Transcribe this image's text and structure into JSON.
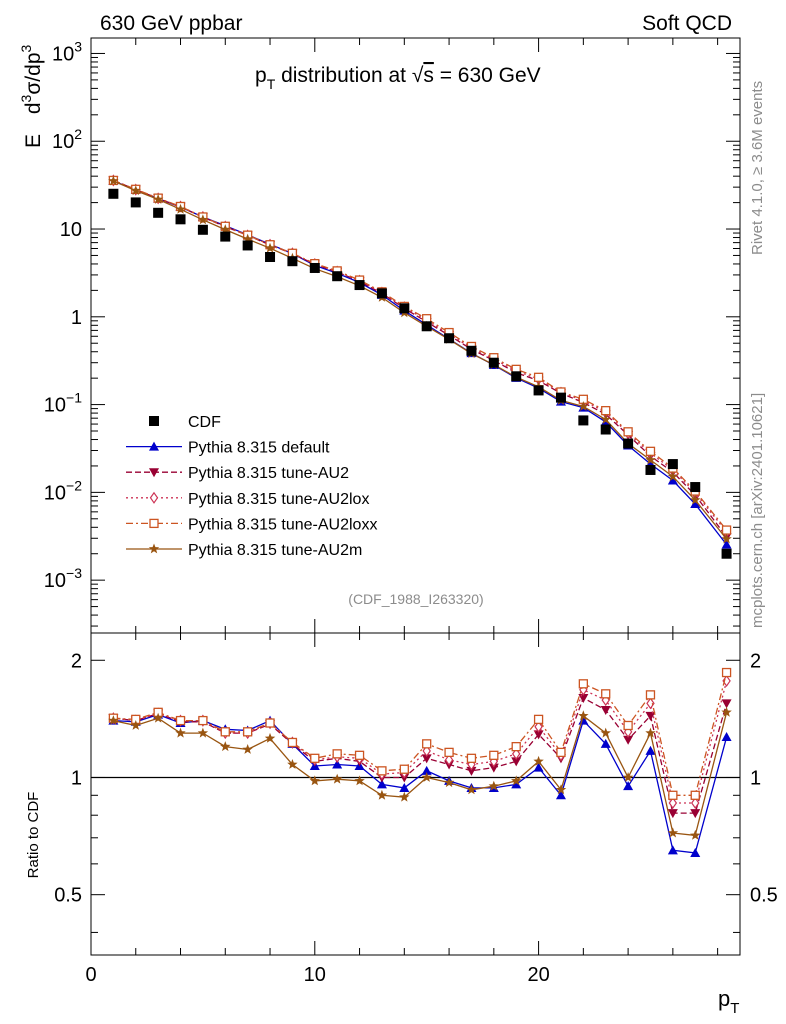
{
  "header": {
    "left": "630 GeV ppbar",
    "right": "Soft QCD"
  },
  "side": {
    "rivet": "Rivet 4.1.0, ≥ 3.6M events",
    "mcplots": "mcplots.cern.ch [arXiv:2401.10621]"
  },
  "chart_data": {
    "type": "line",
    "title": "pT distribution at √s = 630 GeV",
    "title_parts": {
      "p": "p",
      "sub": "T",
      "mid": " distribution at ",
      "root": "√",
      "s": "s",
      "tail": " = 630 GeV"
    },
    "analysis_id": "(CDF_1988_I263320)",
    "ylabel": {
      "e": "E",
      "d3": "d",
      "sup1": "3",
      "sig": "σ/dp",
      "sup2": "3"
    },
    "ratio_ylabel": "Ratio to CDF",
    "xlabel": {
      "p": "p",
      "sub": "T"
    },
    "xlim": [
      0,
      29
    ],
    "ylim": [
      0.00025,
      1500
    ],
    "ratio_ylim": [
      0.35,
      2.35
    ],
    "x_ticks": [
      0,
      10,
      20
    ],
    "x_tick_labels": [
      "0",
      "10",
      "20"
    ],
    "y_ticks": [
      {
        "v": 1000,
        "base": "10",
        "exp": "3"
      },
      {
        "v": 100,
        "base": "10",
        "exp": "2"
      },
      {
        "v": 10,
        "base": "10",
        "exp": ""
      },
      {
        "v": 1,
        "base": "1",
        "exp": ""
      },
      {
        "v": 0.1,
        "base": "10",
        "exp": "−1"
      },
      {
        "v": 0.01,
        "base": "10",
        "exp": "−2"
      },
      {
        "v": 0.001,
        "base": "10",
        "exp": "−3"
      }
    ],
    "ratio_ticks": [
      {
        "v": 2,
        "label": "2"
      },
      {
        "v": 1,
        "label": "1"
      },
      {
        "v": 0.5,
        "label": "0.5"
      }
    ],
    "x": [
      1,
      2,
      3,
      4,
      5,
      6,
      7,
      8,
      9,
      10,
      11,
      12,
      13,
      14,
      15,
      16,
      17,
      18,
      19,
      20,
      21,
      22,
      23,
      24,
      25,
      26,
      27,
      28.4
    ],
    "data": {
      "name": "CDF",
      "color": "#000000",
      "values": [
        25.2,
        20.1,
        15.3,
        12.9,
        9.8,
        8.2,
        6.5,
        4.8,
        4.3,
        3.6,
        2.9,
        2.3,
        1.85,
        1.25,
        0.78,
        0.57,
        0.41,
        0.3,
        0.21,
        0.145,
        0.12,
        0.066,
        0.052,
        0.036,
        0.018,
        0.021,
        0.0115,
        0.002
      ]
    },
    "series": [
      {
        "name": "Pythia 8.315 default",
        "color": "#0000cc",
        "marker": "triangle-up",
        "dash": "",
        "ratio": [
          1.4,
          1.39,
          1.45,
          1.38,
          1.4,
          1.33,
          1.32,
          1.4,
          1.22,
          1.07,
          1.08,
          1.07,
          0.96,
          0.94,
          1.04,
          0.98,
          0.94,
          0.94,
          0.96,
          1.06,
          0.9,
          1.4,
          1.22,
          0.95,
          1.17,
          0.65,
          0.64,
          1.27
        ]
      },
      {
        "name": "Pythia 8.315 tune-AU2",
        "color": "#990033",
        "marker": "triangle-down",
        "dash": "6,3",
        "ratio": [
          1.42,
          1.4,
          1.46,
          1.39,
          1.39,
          1.3,
          1.3,
          1.37,
          1.22,
          1.1,
          1.12,
          1.1,
          1.0,
          1.0,
          1.12,
          1.08,
          1.04,
          1.06,
          1.1,
          1.29,
          1.12,
          1.6,
          1.49,
          1.25,
          1.44,
          0.81,
          0.81,
          1.55
        ]
      },
      {
        "name": "Pythia 8.315 tune-AU2lox",
        "color": "#cc3355",
        "marker": "diamond",
        "dash": "2,3",
        "ratio": [
          1.42,
          1.4,
          1.46,
          1.4,
          1.4,
          1.3,
          1.3,
          1.38,
          1.23,
          1.11,
          1.13,
          1.12,
          1.02,
          1.03,
          1.17,
          1.11,
          1.08,
          1.1,
          1.15,
          1.35,
          1.14,
          1.68,
          1.58,
          1.31,
          1.55,
          0.86,
          0.86,
          1.77
        ]
      },
      {
        "name": "Pythia 8.315 tune-AU2loxx",
        "color": "#cc5522",
        "marker": "square-open",
        "dash": "7,3,2,3",
        "ratio": [
          1.42,
          1.41,
          1.47,
          1.4,
          1.4,
          1.31,
          1.31,
          1.38,
          1.23,
          1.12,
          1.15,
          1.14,
          1.04,
          1.05,
          1.22,
          1.16,
          1.12,
          1.14,
          1.2,
          1.41,
          1.16,
          1.74,
          1.64,
          1.36,
          1.63,
          0.9,
          0.9,
          1.86
        ]
      },
      {
        "name": "Pythia 8.315 tune-AU2m",
        "color": "#995511",
        "marker": "star",
        "dash": "",
        "ratio": [
          1.4,
          1.36,
          1.42,
          1.3,
          1.3,
          1.2,
          1.18,
          1.26,
          1.08,
          0.98,
          0.99,
          0.98,
          0.9,
          0.89,
          1.0,
          0.97,
          0.93,
          0.95,
          0.98,
          1.1,
          0.93,
          1.44,
          1.3,
          1.0,
          1.3,
          0.72,
          0.71,
          1.47
        ]
      }
    ]
  }
}
